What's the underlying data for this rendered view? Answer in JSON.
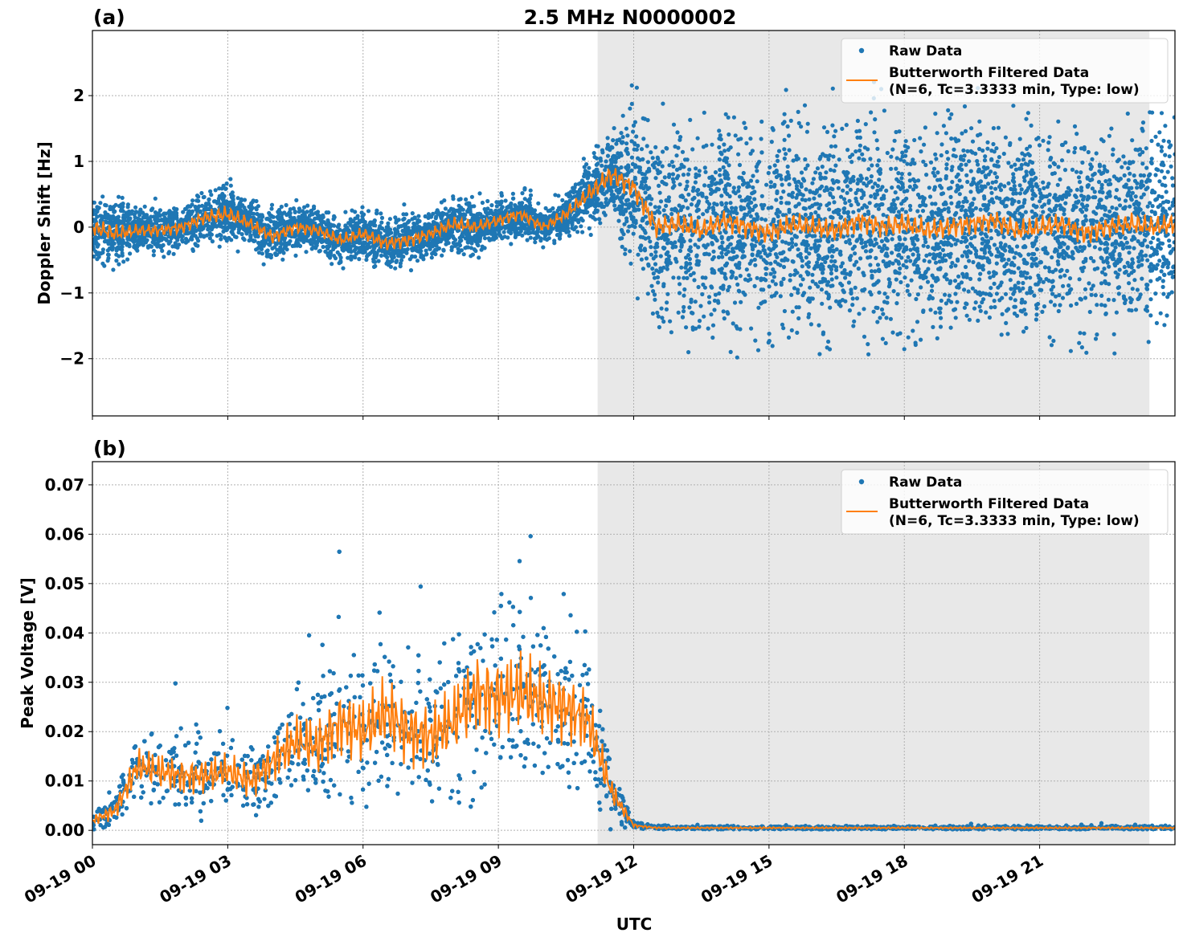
{
  "title": "2.5 MHz N0000002",
  "chart_data": [
    {
      "type": "scatter",
      "panel_label": "(a)",
      "ylabel": "Doppler Shift [Hz]",
      "xlabel": "",
      "xlim": [
        "09-19 00:00",
        "09-19 23:59"
      ],
      "ylim": [
        -2.87,
        2.99
      ],
      "yticks": [
        2,
        1,
        0,
        -1,
        -2
      ],
      "ytick_labels": [
        "2",
        "1",
        "0",
        "−1",
        "−2"
      ],
      "grid": true,
      "shaded_interval": [
        "09-19 11:12",
        "09-19 23:26"
      ],
      "legend": {
        "placement": "top-right",
        "entries": [
          "Raw Data",
          "Butterworth Filtered Data",
          "(N=6, Tc=3.3333 min, Type: low)"
        ]
      },
      "colors": {
        "raw": "#1f77b4",
        "filtered": "#ff7f0e",
        "shade": "#e8e8e8"
      },
      "times": [
        "00:00",
        "00:30",
        "01:00",
        "01:30",
        "02:00",
        "02:30",
        "03:00",
        "03:30",
        "04:00",
        "04:30",
        "05:00",
        "05:30",
        "06:00",
        "06:30",
        "07:00",
        "07:30",
        "08:00",
        "08:30",
        "09:00",
        "09:30",
        "10:00",
        "10:30",
        "11:00",
        "11:30",
        "12:00",
        "12:30",
        "13:00",
        "13:30",
        "14:00",
        "14:30",
        "15:00",
        "15:30",
        "16:00",
        "16:30",
        "17:00",
        "17:30",
        "18:00",
        "18:30",
        "19:00",
        "19:30",
        "20:00",
        "20:30",
        "21:00",
        "21:30",
        "22:00",
        "22:30",
        "23:00",
        "23:30",
        "23:59"
      ],
      "filtered": [
        0.0,
        -0.1,
        -0.05,
        -0.05,
        0.0,
        0.15,
        0.2,
        0.05,
        -0.15,
        0.0,
        -0.05,
        -0.2,
        -0.1,
        -0.25,
        -0.2,
        -0.1,
        0.05,
        0.0,
        0.1,
        0.2,
        0.0,
        0.2,
        0.5,
        0.8,
        0.6,
        0.0,
        0.05,
        -0.05,
        0.1,
        0.0,
        -0.1,
        0.05,
        0.0,
        -0.05,
        0.1,
        0.0,
        0.05,
        -0.05,
        0.0,
        0.05,
        0.1,
        -0.05,
        0.0,
        0.05,
        -0.1,
        0.0,
        0.05,
        0.0,
        0.05
      ],
      "raw_spread": [
        0.45,
        0.5,
        0.35,
        0.35,
        0.35,
        0.4,
        0.45,
        0.35,
        0.4,
        0.35,
        0.35,
        0.35,
        0.35,
        0.4,
        0.4,
        0.35,
        0.4,
        0.35,
        0.35,
        0.35,
        0.3,
        0.35,
        0.5,
        0.6,
        1.2,
        1.6,
        1.6,
        1.6,
        1.6,
        1.6,
        1.6,
        1.6,
        1.6,
        1.6,
        1.6,
        1.6,
        1.6,
        1.6,
        1.6,
        1.6,
        1.6,
        1.6,
        1.6,
        1.6,
        1.6,
        1.6,
        1.6,
        1.6,
        1.6
      ]
    },
    {
      "type": "scatter",
      "panel_label": "(b)",
      "ylabel": "Peak Voltage [V]",
      "xlabel": "UTC",
      "xlim": [
        "09-19 00:00",
        "09-19 23:59"
      ],
      "ylim": [
        -0.0029,
        0.0747
      ],
      "yticks": [
        0.0,
        0.01,
        0.02,
        0.03,
        0.04,
        0.05,
        0.06,
        0.07
      ],
      "ytick_labels": [
        "0.00",
        "0.01",
        "0.02",
        "0.03",
        "0.04",
        "0.05",
        "0.06",
        "0.07"
      ],
      "xtick_labels": [
        "09-19 00",
        "09-19 03",
        "09-19 06",
        "09-19 09",
        "09-19 12",
        "09-19 15",
        "09-19 18",
        "09-19 21"
      ],
      "xtick_hours": [
        0,
        3,
        6,
        9,
        12,
        15,
        18,
        21
      ],
      "grid": true,
      "shaded_interval": [
        "09-19 11:12",
        "09-19 23:26"
      ],
      "legend": {
        "placement": "top-right",
        "entries": [
          "Raw Data",
          "Butterworth Filtered Data",
          "(N=6, Tc=3.3333 min, Type: low)"
        ]
      },
      "colors": {
        "raw": "#1f77b4",
        "filtered": "#ff7f0e",
        "shade": "#e8e8e8"
      },
      "times": [
        "00:00",
        "00:30",
        "01:00",
        "01:30",
        "02:00",
        "02:30",
        "03:00",
        "03:30",
        "04:00",
        "04:30",
        "05:00",
        "05:30",
        "06:00",
        "06:30",
        "07:00",
        "07:30",
        "08:00",
        "08:30",
        "09:00",
        "09:30",
        "10:00",
        "10:30",
        "11:00",
        "11:30",
        "12:00",
        "12:30",
        "13:00",
        "13:30",
        "14:00",
        "14:30",
        "15:00",
        "15:30",
        "16:00",
        "16:30",
        "17:00",
        "17:30",
        "18:00",
        "18:30",
        "19:00",
        "19:30",
        "20:00",
        "20:30",
        "21:00",
        "21:30",
        "22:00",
        "22:30",
        "23:00",
        "23:30",
        "23:59"
      ],
      "filtered": [
        0.002,
        0.004,
        0.013,
        0.012,
        0.011,
        0.011,
        0.012,
        0.01,
        0.014,
        0.018,
        0.017,
        0.022,
        0.02,
        0.024,
        0.02,
        0.019,
        0.022,
        0.028,
        0.027,
        0.028,
        0.026,
        0.025,
        0.022,
        0.008,
        0.001,
        0.0005,
        0.0005,
        0.0005,
        0.0005,
        0.0005,
        0.0005,
        0.0005,
        0.0005,
        0.0005,
        0.0005,
        0.0005,
        0.0005,
        0.0005,
        0.0005,
        0.0005,
        0.0005,
        0.0005,
        0.0005,
        0.0005,
        0.0005,
        0.0005,
        0.0005,
        0.0005,
        0.0005
      ],
      "raw_spread": [
        0.002,
        0.004,
        0.008,
        0.008,
        0.008,
        0.008,
        0.008,
        0.008,
        0.01,
        0.012,
        0.013,
        0.015,
        0.015,
        0.016,
        0.015,
        0.015,
        0.016,
        0.018,
        0.018,
        0.018,
        0.017,
        0.016,
        0.014,
        0.006,
        0.0008,
        0.0004,
        0.0004,
        0.0004,
        0.0004,
        0.0004,
        0.0004,
        0.0004,
        0.0004,
        0.0004,
        0.0004,
        0.0004,
        0.0004,
        0.0004,
        0.0004,
        0.0004,
        0.0004,
        0.0004,
        0.0004,
        0.0004,
        0.0004,
        0.0004,
        0.0004,
        0.0004,
        0.0004
      ]
    }
  ]
}
